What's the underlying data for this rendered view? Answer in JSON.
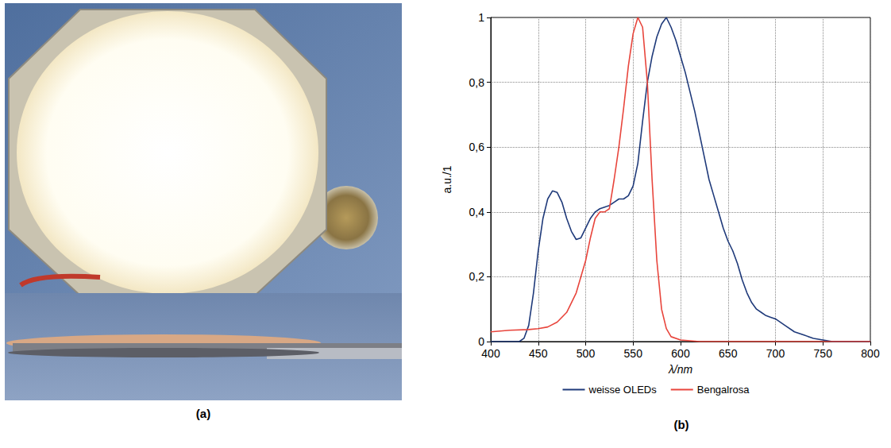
{
  "photo": {
    "panel_label": "(a)"
  },
  "chart_data": {
    "type": "line",
    "panel_label": "(b)",
    "x_label": "λ/nm",
    "y_label": "a.u./1",
    "xlim": [
      400,
      800
    ],
    "xticks": [
      400,
      450,
      500,
      550,
      600,
      650,
      700,
      750,
      800
    ],
    "ylim": [
      0,
      1
    ],
    "yticks": [
      0,
      {
        "value": 0.2,
        "label": "0,2"
      },
      {
        "value": 0.4,
        "label": "0,4"
      },
      {
        "value": 0.6,
        "label": "0,6"
      },
      {
        "value": 0.8,
        "label": "0,8"
      },
      1
    ],
    "grid": true,
    "legend": "bottom",
    "series": [
      {
        "name": "weisse OLEDs",
        "color": "#1f3a7a",
        "x": [
          400,
          420,
          430,
          435,
          440,
          445,
          450,
          455,
          460,
          465,
          470,
          475,
          480,
          485,
          490,
          495,
          500,
          505,
          510,
          515,
          520,
          525,
          530,
          535,
          540,
          545,
          550,
          555,
          560,
          565,
          570,
          575,
          580,
          585,
          590,
          595,
          600,
          605,
          610,
          615,
          620,
          625,
          630,
          635,
          640,
          645,
          650,
          655,
          660,
          665,
          670,
          675,
          680,
          685,
          690,
          695,
          700,
          710,
          720,
          730,
          740,
          750,
          760,
          780,
          800
        ],
        "values": [
          0,
          0,
          0,
          0.01,
          0.05,
          0.15,
          0.28,
          0.38,
          0.44,
          0.465,
          0.46,
          0.43,
          0.38,
          0.34,
          0.315,
          0.32,
          0.35,
          0.38,
          0.4,
          0.41,
          0.415,
          0.42,
          0.43,
          0.44,
          0.44,
          0.45,
          0.48,
          0.55,
          0.68,
          0.8,
          0.88,
          0.94,
          0.98,
          1,
          0.97,
          0.93,
          0.88,
          0.83,
          0.77,
          0.71,
          0.64,
          0.57,
          0.5,
          0.45,
          0.4,
          0.35,
          0.31,
          0.28,
          0.24,
          0.19,
          0.15,
          0.12,
          0.1,
          0.09,
          0.08,
          0.075,
          0.07,
          0.05,
          0.03,
          0.02,
          0.01,
          0.005,
          0,
          0,
          0
        ]
      },
      {
        "name": "Bengalrosa",
        "color": "#e8453c",
        "x": [
          400,
          420,
          440,
          450,
          460,
          470,
          480,
          490,
          500,
          505,
          510,
          515,
          520,
          525,
          530,
          535,
          540,
          545,
          550,
          555,
          560,
          565,
          570,
          575,
          580,
          585,
          590,
          600,
          620,
          700,
          800
        ],
        "values": [
          0.03,
          0.035,
          0.037,
          0.04,
          0.045,
          0.06,
          0.09,
          0.15,
          0.25,
          0.32,
          0.38,
          0.4,
          0.4,
          0.41,
          0.5,
          0.6,
          0.72,
          0.85,
          0.95,
          1,
          0.97,
          0.8,
          0.5,
          0.25,
          0.1,
          0.04,
          0.015,
          0.005,
          0,
          0,
          0
        ]
      }
    ]
  }
}
